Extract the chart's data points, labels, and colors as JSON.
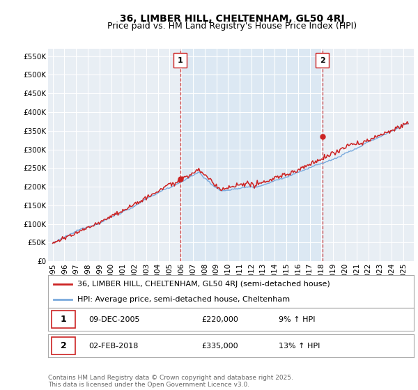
{
  "title": "36, LIMBER HILL, CHELTENHAM, GL50 4RJ",
  "subtitle": "Price paid vs. HM Land Registry's House Price Index (HPI)",
  "background_color": "#ffffff",
  "plot_bg_color": "#e8eef4",
  "plot_bg_between": "#dce8f3",
  "grid_color": "#ffffff",
  "hpi_color": "#7aaadd",
  "price_color": "#cc2222",
  "ylim": [
    0,
    570000
  ],
  "yticks": [
    0,
    50000,
    100000,
    150000,
    200000,
    250000,
    300000,
    350000,
    400000,
    450000,
    500000,
    550000
  ],
  "ytick_labels": [
    "£0",
    "£50K",
    "£100K",
    "£150K",
    "£200K",
    "£250K",
    "£300K",
    "£350K",
    "£400K",
    "£450K",
    "£500K",
    "£550K"
  ],
  "xlim_left": 1994.6,
  "xlim_right": 2025.9,
  "ann1_x": 2005.92,
  "ann1_y": 220000,
  "ann1_label": "1",
  "ann1_date": "09-DEC-2005",
  "ann1_price": "£220,000",
  "ann1_hpi": "9% ↑ HPI",
  "ann2_x": 2018.08,
  "ann2_y": 335000,
  "ann2_label": "2",
  "ann2_date": "02-FEB-2018",
  "ann2_price": "£335,000",
  "ann2_hpi": "13% ↑ HPI",
  "legend_line1": "36, LIMBER HILL, CHELTENHAM, GL50 4RJ (semi-detached house)",
  "legend_line2": "HPI: Average price, semi-detached house, Cheltenham",
  "footer": "Contains HM Land Registry data © Crown copyright and database right 2025.\nThis data is licensed under the Open Government Licence v3.0.",
  "title_fontsize": 10,
  "subtitle_fontsize": 9,
  "tick_fontsize": 7.5,
  "legend_fontsize": 8,
  "footer_fontsize": 6.5
}
